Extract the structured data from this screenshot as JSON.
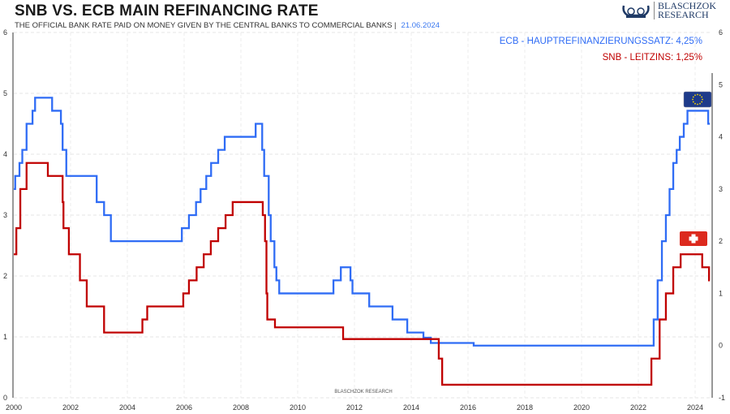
{
  "header": {
    "title": "SNB VS. ECB MAIN REFINANCING RATE",
    "subtitle": "THE OFFICIAL BANK RATE PAID ON MONEY GIVEN BY THE CENTRAL BANKS TO COMMERCIAL BANKS  |",
    "date": "21.06.2024",
    "logo_line1": "BLASCHZOK",
    "logo_line2": "RESEARCH"
  },
  "chart_data": {
    "type": "line",
    "title": "SNB VS. ECB MAIN REFINANCING RATE",
    "xlabel": "",
    "ylabel": "",
    "x_ticks": [
      "2000",
      "2002",
      "2004",
      "2006",
      "2008",
      "2010",
      "2012",
      "2014",
      "2016",
      "2018",
      "2020",
      "2022",
      "2024"
    ],
    "left_ticks": [
      "0",
      "1",
      "2",
      "3",
      "4",
      "5",
      "6"
    ],
    "right_ticks": [
      "-1",
      "0",
      "1",
      "2",
      "3",
      "4",
      "5",
      "6"
    ],
    "ylim_right": [
      -1,
      6
    ],
    "ylim_left": [
      0,
      6
    ],
    "xlim": [
      2000,
      2024.55
    ],
    "grid": true,
    "watermark": "BLASCHZOK   RESEARCH",
    "legend_position": "top-right",
    "series": [
      {
        "name": "ECB - HAUPTREFINANZIERUNGSSATZ: 4,25%",
        "color": "#2f6cf5",
        "flag": "eu-flag",
        "steps": [
          [
            2000,
            3.0
          ],
          [
            2000.05,
            3.25
          ],
          [
            2000.2,
            3.5
          ],
          [
            2000.3,
            3.75
          ],
          [
            2000.45,
            4.25
          ],
          [
            2000.66,
            4.5
          ],
          [
            2000.75,
            4.75
          ],
          [
            2001.35,
            4.5
          ],
          [
            2001.66,
            4.25
          ],
          [
            2001.72,
            3.75
          ],
          [
            2001.85,
            3.25
          ],
          [
            2002.92,
            2.75
          ],
          [
            2003.18,
            2.5
          ],
          [
            2003.42,
            2.0
          ],
          [
            2005.92,
            2.25
          ],
          [
            2006.17,
            2.5
          ],
          [
            2006.42,
            2.75
          ],
          [
            2006.58,
            3.0
          ],
          [
            2006.78,
            3.25
          ],
          [
            2006.95,
            3.5
          ],
          [
            2007.2,
            3.75
          ],
          [
            2007.43,
            4.0
          ],
          [
            2008.52,
            4.25
          ],
          [
            2008.75,
            3.75
          ],
          [
            2008.82,
            3.25
          ],
          [
            2008.98,
            2.5
          ],
          [
            2009.05,
            2.0
          ],
          [
            2009.18,
            1.5
          ],
          [
            2009.25,
            1.25
          ],
          [
            2009.35,
            1.0
          ],
          [
            2011.26,
            1.25
          ],
          [
            2011.52,
            1.5
          ],
          [
            2011.86,
            1.25
          ],
          [
            2011.93,
            1.0
          ],
          [
            2012.52,
            0.75
          ],
          [
            2013.34,
            0.5
          ],
          [
            2013.86,
            0.25
          ],
          [
            2014.43,
            0.15
          ],
          [
            2014.69,
            0.05
          ],
          [
            2016.2,
            0.0
          ],
          [
            2022.54,
            0.5
          ],
          [
            2022.68,
            1.25
          ],
          [
            2022.83,
            2.0
          ],
          [
            2022.97,
            2.5
          ],
          [
            2023.1,
            3.0
          ],
          [
            2023.23,
            3.5
          ],
          [
            2023.35,
            3.75
          ],
          [
            2023.46,
            4.0
          ],
          [
            2023.6,
            4.25
          ],
          [
            2023.73,
            4.5
          ],
          [
            2024.46,
            4.25
          ],
          [
            2024.52,
            4.25
          ]
        ]
      },
      {
        "name": "SNB - LEITZINS: 1,25%",
        "color": "#c00000",
        "flag": "swiss-flag",
        "steps": [
          [
            2000,
            1.75
          ],
          [
            2000.09,
            2.25
          ],
          [
            2000.23,
            3.0
          ],
          [
            2000.45,
            3.5
          ],
          [
            2001.2,
            3.25
          ],
          [
            2001.72,
            2.75
          ],
          [
            2001.75,
            2.25
          ],
          [
            2001.94,
            1.75
          ],
          [
            2002.33,
            1.25
          ],
          [
            2002.57,
            0.75
          ],
          [
            2003.18,
            0.25
          ],
          [
            2004.53,
            0.5
          ],
          [
            2004.7,
            0.75
          ],
          [
            2005.97,
            1.0
          ],
          [
            2006.17,
            1.25
          ],
          [
            2006.44,
            1.5
          ],
          [
            2006.69,
            1.75
          ],
          [
            2006.94,
            2.0
          ],
          [
            2007.2,
            2.25
          ],
          [
            2007.46,
            2.5
          ],
          [
            2007.71,
            2.75
          ],
          [
            2008.77,
            2.5
          ],
          [
            2008.85,
            2.0
          ],
          [
            2008.9,
            1.0
          ],
          [
            2008.93,
            0.5
          ],
          [
            2009.2,
            0.35
          ],
          [
            2011.6,
            0.125
          ],
          [
            2014.97,
            -0.25
          ],
          [
            2015.09,
            -0.75
          ],
          [
            2022.46,
            -0.25
          ],
          [
            2022.75,
            0.5
          ],
          [
            2022.97,
            1.0
          ],
          [
            2023.23,
            1.5
          ],
          [
            2023.49,
            1.75
          ],
          [
            2024.25,
            1.5
          ],
          [
            2024.49,
            1.25
          ],
          [
            2024.52,
            1.25
          ]
        ]
      }
    ]
  }
}
